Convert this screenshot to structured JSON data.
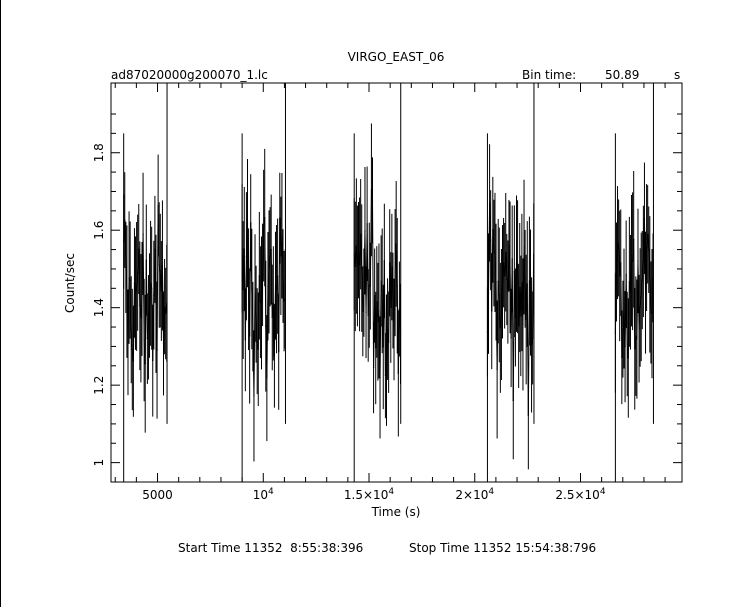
{
  "chart_data": {
    "type": "line",
    "title": "VIRGO_EAST_06",
    "file_label": "ad87020000g200070_1.lc",
    "bin_time_label": "Bin time:",
    "bin_time_value": "50.89",
    "bin_time_unit": "s",
    "xlabel": "Time (s)",
    "ylabel": "Count/sec",
    "xlim": [
      2800,
      29800
    ],
    "ylim": [
      0.95,
      1.98
    ],
    "x_ticks": [
      {
        "value": 5000,
        "label": "5000"
      },
      {
        "value": 10000,
        "label": "10",
        "exp": "4",
        "mant": ""
      },
      {
        "value": 15000,
        "label": "1.5×10",
        "exp": "4",
        "mant": "1.5×"
      },
      {
        "value": 20000,
        "label": "2×10",
        "exp": "4",
        "mant": "2×"
      },
      {
        "value": 25000,
        "label": "2.5×10",
        "exp": "4",
        "mant": "2.5×"
      }
    ],
    "y_ticks": [
      {
        "value": 1.0,
        "label": "1"
      },
      {
        "value": 1.2,
        "label": "1.2"
      },
      {
        "value": 1.4,
        "label": "1.4"
      },
      {
        "value": 1.6,
        "label": "1.6"
      },
      {
        "value": 1.8,
        "label": "1.8"
      }
    ],
    "segments": [
      {
        "start": 3400,
        "end": 5450,
        "mean": 1.42
      },
      {
        "start": 9000,
        "end": 11050,
        "mean": 1.46
      },
      {
        "start": 14300,
        "end": 16500,
        "mean": 1.44
      },
      {
        "start": 20600,
        "end": 22800,
        "mean": 1.45
      },
      {
        "start": 26650,
        "end": 28450,
        "mean": 1.45
      }
    ],
    "bin_width": 50.89,
    "grid": false
  },
  "footer": {
    "start": "Start Time 11352  8:55:38:396",
    "stop": "Stop Time 11352 15:54:38:796"
  }
}
